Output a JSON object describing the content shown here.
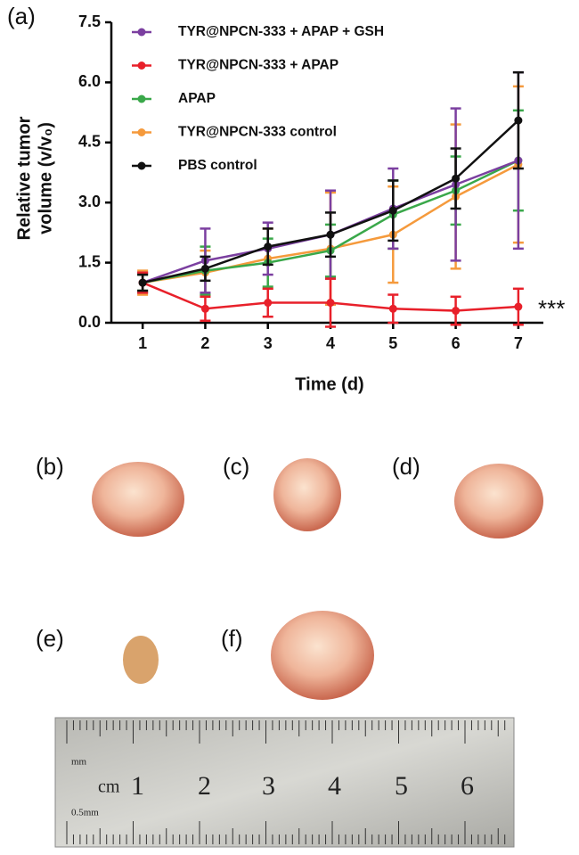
{
  "chart_data": {
    "type": "line",
    "x_label": "Time (d)",
    "y_label": [
      "Relative tumor",
      "volume (v/v₀)"
    ],
    "x": [
      1,
      2,
      3,
      4,
      5,
      6,
      7
    ],
    "xlim": [
      0.5,
      7.4
    ],
    "xticks": [
      1,
      2,
      3,
      4,
      5,
      6,
      7
    ],
    "ylim": [
      0,
      7.5
    ],
    "yticks": [
      {
        "value": 0,
        "label": "0.0"
      },
      1.5,
      {
        "value": 3,
        "label": "3.0"
      },
      4.5,
      {
        "value": 6,
        "label": "6.0"
      },
      7.5
    ],
    "series": [
      {
        "name": "TYR@NPCN-333 + APAP + GSH",
        "color": "#7b3fa0",
        "values": [
          1.0,
          1.55,
          1.85,
          2.2,
          2.85,
          3.45,
          4.05
        ],
        "errors": [
          0.25,
          0.8,
          0.65,
          1.1,
          1.0,
          1.9,
          2.2
        ]
      },
      {
        "name": "TYR@NPCN-333 + APAP",
        "color": "#e8202a",
        "values": [
          1.0,
          0.35,
          0.5,
          0.5,
          0.35,
          0.3,
          0.4
        ],
        "errors": [
          0.25,
          0.3,
          0.35,
          0.6,
          0.35,
          0.35,
          0.45
        ]
      },
      {
        "name": "APAP",
        "color": "#3aa84a",
        "values": [
          1.0,
          1.3,
          1.5,
          1.8,
          2.7,
          3.3,
          4.05
        ],
        "errors": [
          0.2,
          0.6,
          0.6,
          0.65,
          0.85,
          0.85,
          1.25
        ]
      },
      {
        "name": "TYR@NPCN-333 control",
        "color": "#f59a3c",
        "values": [
          1.0,
          1.25,
          1.6,
          1.85,
          2.2,
          3.15,
          3.95
        ],
        "errors": [
          0.3,
          0.55,
          0.75,
          1.4,
          1.2,
          1.8,
          1.95
        ]
      },
      {
        "name": "PBS control",
        "color": "#111111",
        "values": [
          1.0,
          1.35,
          1.9,
          2.2,
          2.8,
          3.6,
          5.05
        ],
        "errors": [
          0.2,
          0.3,
          0.45,
          0.55,
          0.75,
          0.75,
          1.2
        ]
      }
    ],
    "annotation": "***"
  },
  "panel_labels": [
    "(a)",
    "(b)",
    "(c)",
    "(d)",
    "(e)",
    "(f)"
  ],
  "ruler_labels": [
    "mm",
    "cm",
    "1",
    "2",
    "3",
    "4",
    "5",
    "6",
    "0.5mm"
  ]
}
